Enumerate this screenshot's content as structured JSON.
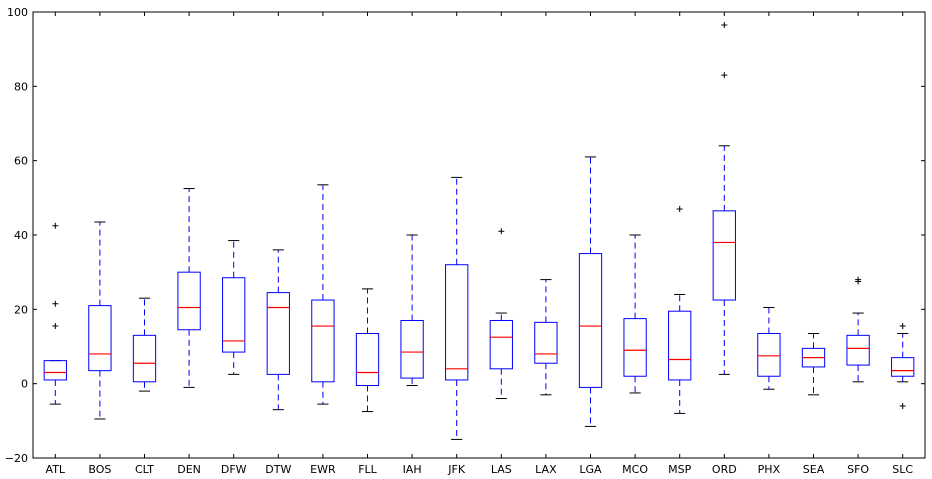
{
  "chart_data": {
    "type": "box",
    "categories": [
      "ATL",
      "BOS",
      "CLT",
      "DEN",
      "DFW",
      "DTW",
      "EWR",
      "FLL",
      "IAH",
      "JFK",
      "LAS",
      "LAX",
      "LGA",
      "MCO",
      "MSP",
      "ORD",
      "PHX",
      "SEA",
      "SFO",
      "SLC"
    ],
    "boxes": [
      {
        "whisker_low": -5.5,
        "q1": 1.0,
        "median": 3.0,
        "q3": 6.2,
        "whisker_high": 6.2,
        "outliers": [
          15.5,
          21.5,
          42.5
        ]
      },
      {
        "whisker_low": -9.5,
        "q1": 3.5,
        "median": 8.0,
        "q3": 21.0,
        "whisker_high": 43.5,
        "outliers": []
      },
      {
        "whisker_low": -2.0,
        "q1": 0.5,
        "median": 5.5,
        "q3": 13.0,
        "whisker_high": 23.0,
        "outliers": []
      },
      {
        "whisker_low": -1.0,
        "q1": 14.5,
        "median": 20.5,
        "q3": 30.0,
        "whisker_high": 52.5,
        "outliers": []
      },
      {
        "whisker_low": 2.5,
        "q1": 8.5,
        "median": 11.5,
        "q3": 28.5,
        "whisker_high": 38.5,
        "outliers": []
      },
      {
        "whisker_low": -7.0,
        "q1": 2.5,
        "median": 20.5,
        "q3": 24.5,
        "whisker_high": 36.0,
        "outliers": []
      },
      {
        "whisker_low": -5.5,
        "q1": 0.5,
        "median": 15.5,
        "q3": 22.5,
        "whisker_high": 53.5,
        "outliers": []
      },
      {
        "whisker_low": -7.5,
        "q1": -0.5,
        "median": 3.0,
        "q3": 13.5,
        "whisker_high": 25.5,
        "outliers": []
      },
      {
        "whisker_low": -0.5,
        "q1": 1.5,
        "median": 8.5,
        "q3": 17.0,
        "whisker_high": 40.0,
        "outliers": []
      },
      {
        "whisker_low": -15.0,
        "q1": 1.0,
        "median": 4.0,
        "q3": 32.0,
        "whisker_high": 55.5,
        "outliers": []
      },
      {
        "whisker_low": -4.0,
        "q1": 4.0,
        "median": 12.5,
        "q3": 17.0,
        "whisker_high": 19.0,
        "outliers": [
          41.0
        ]
      },
      {
        "whisker_low": -3.0,
        "q1": 5.5,
        "median": 8.0,
        "q3": 16.5,
        "whisker_high": 28.0,
        "outliers": []
      },
      {
        "whisker_low": -11.5,
        "q1": -1.0,
        "median": 15.5,
        "q3": 35.0,
        "whisker_high": 61.0,
        "outliers": []
      },
      {
        "whisker_low": -2.5,
        "q1": 2.0,
        "median": 9.0,
        "q3": 17.5,
        "whisker_high": 40.0,
        "outliers": []
      },
      {
        "whisker_low": -8.0,
        "q1": 1.0,
        "median": 6.5,
        "q3": 19.5,
        "whisker_high": 24.0,
        "outliers": [
          47.0
        ]
      },
      {
        "whisker_low": 2.5,
        "q1": 22.5,
        "median": 38.0,
        "q3": 46.5,
        "whisker_high": 64.0,
        "outliers": [
          83.0,
          96.5
        ]
      },
      {
        "whisker_low": -1.5,
        "q1": 2.0,
        "median": 7.5,
        "q3": 13.5,
        "whisker_high": 20.5,
        "outliers": []
      },
      {
        "whisker_low": -3.0,
        "q1": 4.5,
        "median": 7.0,
        "q3": 9.5,
        "whisker_high": 13.5,
        "outliers": []
      },
      {
        "whisker_low": 0.5,
        "q1": 5.0,
        "median": 9.5,
        "q3": 13.0,
        "whisker_high": 19.0,
        "outliers": [
          27.5,
          28.0
        ]
      },
      {
        "whisker_low": 0.5,
        "q1": 2.0,
        "median": 3.5,
        "q3": 7.0,
        "whisker_high": 13.5,
        "outliers": [
          -6.0,
          15.5
        ]
      }
    ],
    "ylim": [
      -20,
      100
    ],
    "yticks": [
      "−20",
      "0",
      "20",
      "40",
      "60",
      "80",
      "100"
    ],
    "ytick_values": [
      -20,
      0,
      20,
      40,
      60,
      80,
      100
    ],
    "colors": {
      "box": "#0000ff",
      "median": "#ff0000",
      "whisker": "#0000ff",
      "flier": "#000000"
    },
    "grid": false,
    "title": "",
    "xlabel": "",
    "ylabel": ""
  }
}
